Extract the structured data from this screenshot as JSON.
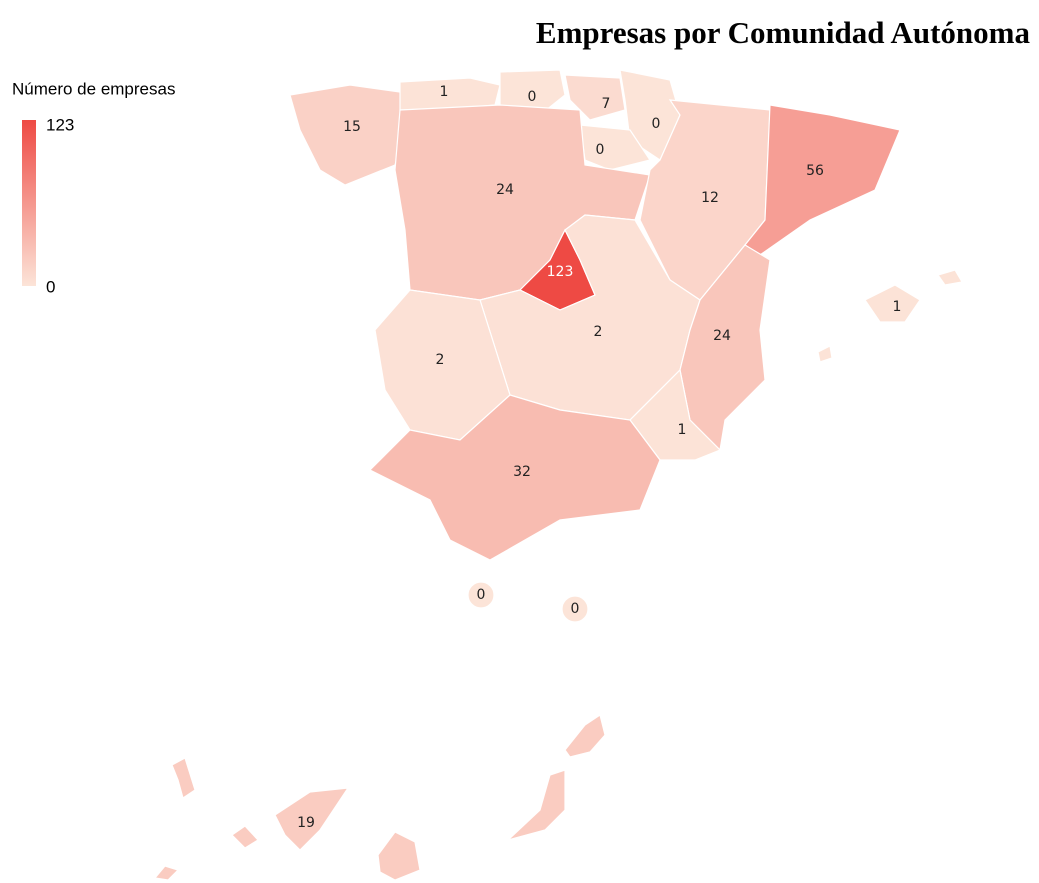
{
  "chart_data": {
    "type": "choropleth",
    "title": "Empresas por Comunidad Autónoma",
    "legend": {
      "title": "Número de empresas",
      "min": 0,
      "max": 123
    },
    "colors": [
      "#fce4d8",
      "#ee4a44"
    ],
    "values": [
      15,
      1,
      0,
      7,
      0,
      0,
      24,
      12,
      56,
      123,
      2,
      2,
      24,
      1,
      32,
      1,
      0,
      0,
      19
    ]
  }
}
